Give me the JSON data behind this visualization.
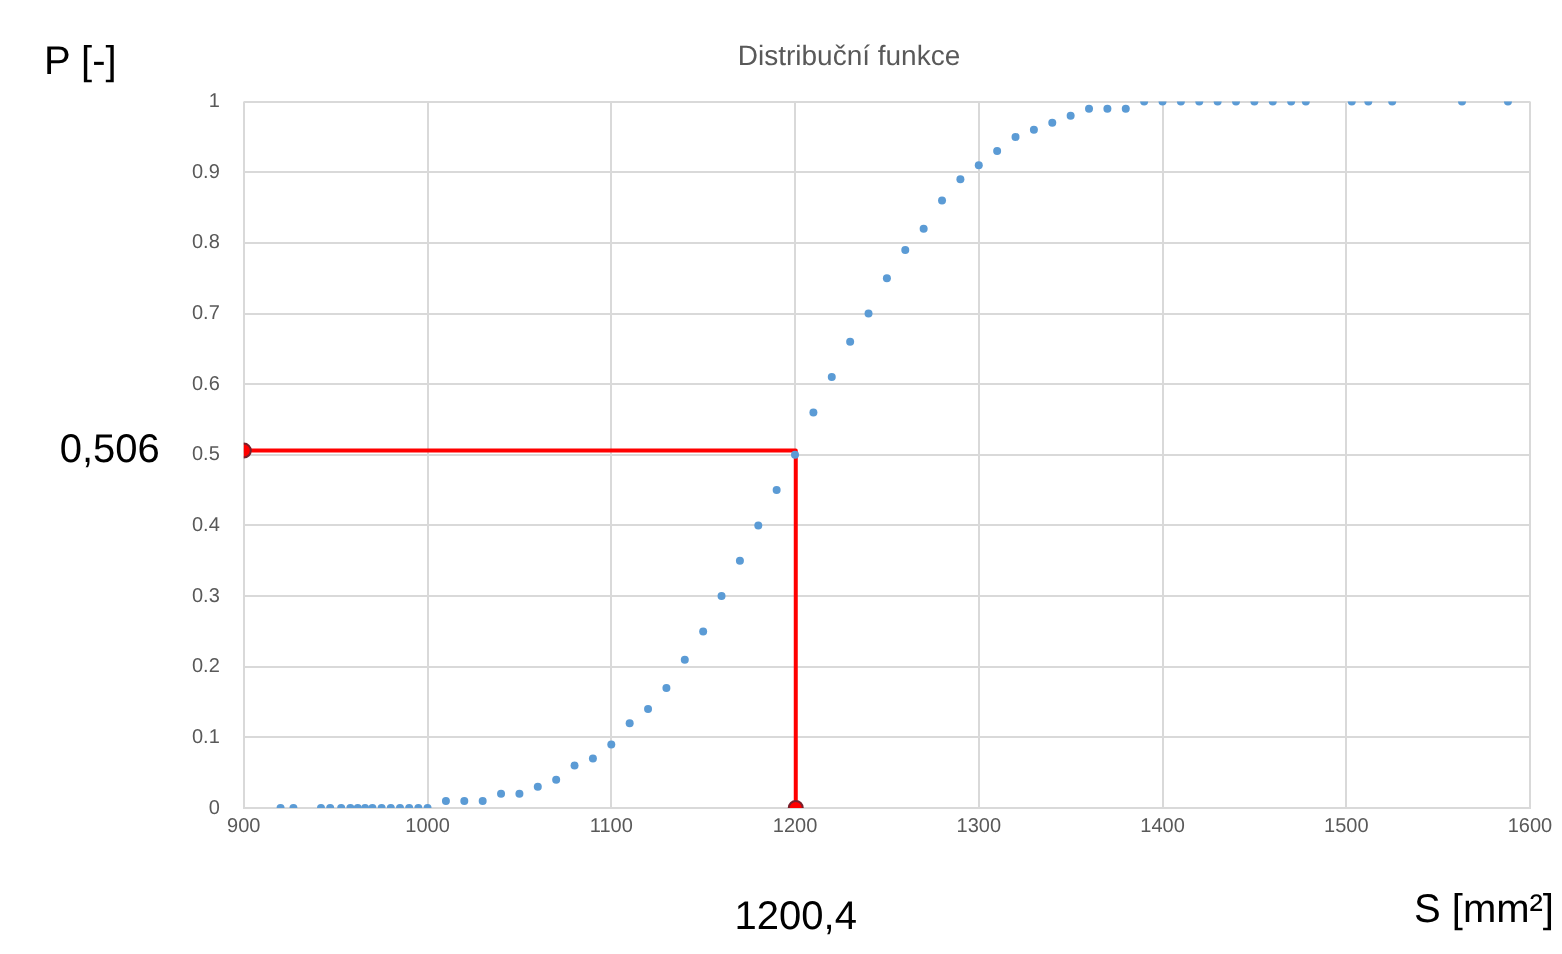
{
  "chart_data": {
    "type": "scatter",
    "title": "Distribuční funkce",
    "xlabel": "S [mm²]",
    "ylabel": "P [-]",
    "xlim": [
      900,
      1600
    ],
    "xticks": [
      900,
      1000,
      1100,
      1200,
      1300,
      1400,
      1500,
      1600
    ],
    "ylim": [
      0,
      1
    ],
    "yticks": [
      0,
      0.1,
      0.2,
      0.3,
      0.4,
      0.5,
      0.6,
      0.7,
      0.8,
      0.9,
      1
    ],
    "grid": true,
    "legend": false,
    "series": [
      {
        "type": "scatter",
        "color": "#5b9bd5",
        "marker": "circle",
        "x": [
          920,
          927,
          942,
          947,
          953,
          958,
          962,
          966,
          970,
          975,
          980,
          985,
          990,
          995,
          1000,
          1010,
          1020,
          1030,
          1040,
          1050,
          1060,
          1070,
          1080,
          1090,
          1100,
          1110,
          1120,
          1130,
          1140,
          1150,
          1160,
          1170,
          1180,
          1190,
          1200,
          1210,
          1220,
          1230,
          1240,
          1250,
          1260,
          1270,
          1280,
          1290,
          1300,
          1310,
          1320,
          1330,
          1340,
          1350,
          1360,
          1370,
          1380,
          1390,
          1400,
          1410,
          1420,
          1430,
          1440,
          1450,
          1460,
          1470,
          1478,
          1503,
          1512,
          1525,
          1563,
          1588
        ],
        "values": [
          0,
          0,
          0,
          0,
          0,
          0,
          0,
          0,
          0,
          0,
          0,
          0,
          0,
          0,
          0,
          0.01,
          0.01,
          0.01,
          0.02,
          0.02,
          0.03,
          0.04,
          0.06,
          0.07,
          0.09,
          0.12,
          0.14,
          0.17,
          0.21,
          0.25,
          0.3,
          0.35,
          0.4,
          0.45,
          0.5,
          0.56,
          0.61,
          0.66,
          0.7,
          0.75,
          0.79,
          0.82,
          0.86,
          0.89,
          0.91,
          0.93,
          0.95,
          0.96,
          0.97,
          0.98,
          0.99,
          0.99,
          0.99,
          1,
          1,
          1,
          1,
          1,
          1,
          1,
          1,
          1,
          1,
          1,
          1,
          1,
          1,
          1
        ]
      },
      {
        "type": "line",
        "color": "#ff0000",
        "marker": "circle",
        "x": [
          900,
          1200.4,
          1200.4
        ],
        "values": [
          0.506,
          0.506,
          0
        ]
      }
    ],
    "annotations": [
      {
        "text": "0,506",
        "x": 900,
        "y": 0.506
      },
      {
        "text": "1200,4",
        "x": 1200.4,
        "y": 0
      }
    ]
  }
}
